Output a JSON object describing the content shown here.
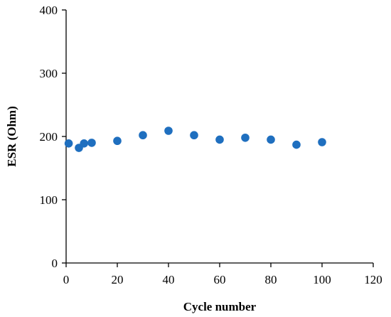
{
  "chart_data": {
    "type": "scatter",
    "xlabel": "Cycle number",
    "ylabel": "ESR (Ohm)",
    "xlim": [
      0,
      120
    ],
    "ylim": [
      0,
      400
    ],
    "xticks": [
      0,
      20,
      40,
      60,
      80,
      100,
      120
    ],
    "yticks": [
      0,
      100,
      200,
      300,
      400
    ],
    "grid": false,
    "legend": "none",
    "marker_color": "#1f6fbf",
    "series": [
      {
        "points": [
          {
            "x": 1,
            "y": 189
          },
          {
            "x": 5,
            "y": 182
          },
          {
            "x": 7,
            "y": 189
          },
          {
            "x": 10,
            "y": 190
          },
          {
            "x": 20,
            "y": 193
          },
          {
            "x": 30,
            "y": 202
          },
          {
            "x": 40,
            "y": 209
          },
          {
            "x": 50,
            "y": 202
          },
          {
            "x": 60,
            "y": 195
          },
          {
            "x": 70,
            "y": 198
          },
          {
            "x": 80,
            "y": 195
          },
          {
            "x": 90,
            "y": 187
          },
          {
            "x": 100,
            "y": 191
          }
        ]
      }
    ]
  }
}
